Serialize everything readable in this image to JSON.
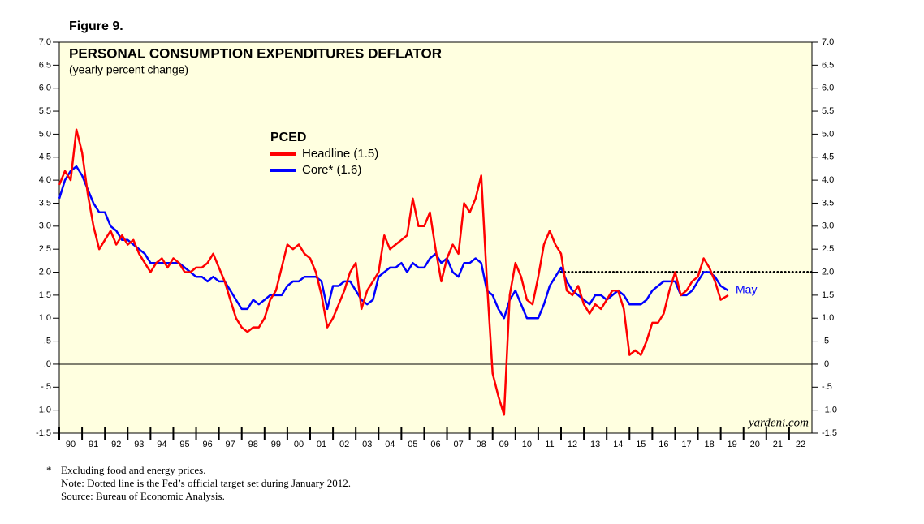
{
  "chart_data": {
    "type": "line",
    "figure_label": "Figure 9.",
    "title": "PERSONAL CONSUMPTION EXPENDITURES DEFLATOR",
    "subtitle": "(yearly percent change)",
    "legend_title": "PCED",
    "annotation": "May",
    "watermark": "yardeni.com",
    "footnote_marker": "*",
    "footnotes": [
      "Excluding food and energy prices.",
      "Note: Dotted line is the Fed’s official target set during January 2012.",
      "Source: Bureau of Economic Analysis."
    ],
    "xlim": [
      1990,
      2023
    ],
    "xticks": [
      {
        "value": 1990,
        "label": "90"
      },
      {
        "value": 1991,
        "label": "91"
      },
      {
        "value": 1992,
        "label": "92"
      },
      {
        "value": 1993,
        "label": "93"
      },
      {
        "value": 1994,
        "label": "94"
      },
      {
        "value": 1995,
        "label": "95"
      },
      {
        "value": 1996,
        "label": "96"
      },
      {
        "value": 1997,
        "label": "97"
      },
      {
        "value": 1998,
        "label": "98"
      },
      {
        "value": 1999,
        "label": "99"
      },
      {
        "value": 2000,
        "label": "00"
      },
      {
        "value": 2001,
        "label": "01"
      },
      {
        "value": 2002,
        "label": "02"
      },
      {
        "value": 2003,
        "label": "03"
      },
      {
        "value": 2004,
        "label": "04"
      },
      {
        "value": 2005,
        "label": "05"
      },
      {
        "value": 2006,
        "label": "06"
      },
      {
        "value": 2007,
        "label": "07"
      },
      {
        "value": 2008,
        "label": "08"
      },
      {
        "value": 2009,
        "label": "09"
      },
      {
        "value": 2010,
        "label": "10"
      },
      {
        "value": 2011,
        "label": "11"
      },
      {
        "value": 2012,
        "label": "12"
      },
      {
        "value": 2013,
        "label": "13"
      },
      {
        "value": 2014,
        "label": "14"
      },
      {
        "value": 2015,
        "label": "15"
      },
      {
        "value": 2016,
        "label": "16"
      },
      {
        "value": 2017,
        "label": "17"
      },
      {
        "value": 2018,
        "label": "18"
      },
      {
        "value": 2019,
        "label": "19"
      },
      {
        "value": 2020,
        "label": "20"
      },
      {
        "value": 2021,
        "label": "21"
      },
      {
        "value": 2022,
        "label": "22"
      }
    ],
    "ylim": [
      -1.5,
      7.0
    ],
    "yticks": [
      {
        "value": -1.5,
        "label": "-1.5"
      },
      {
        "value": -1.0,
        "label": "-1.0"
      },
      {
        "value": -0.5,
        "label": "-.5"
      },
      {
        "value": 0,
        "label": ".0"
      },
      {
        "value": 0.5,
        "label": ".5"
      },
      {
        "value": 1.0,
        "label": "1.0"
      },
      1.5,
      {
        "value": 2.0,
        "label": "2.0"
      },
      2.5,
      {
        "value": 3.0,
        "label": "3.0"
      },
      3.5,
      {
        "value": 4.0,
        "label": "4.0"
      },
      4.5,
      {
        "value": 5.0,
        "label": "5.0"
      },
      5.5,
      {
        "value": 6.0,
        "label": "6.0"
      },
      6.5,
      {
        "value": 7.0,
        "label": "7.0"
      }
    ],
    "reference_line": {
      "y": 2.0,
      "x": [
        2012,
        2023
      ]
    },
    "x": [
      1990,
      1990.25,
      1990.5,
      1990.75,
      1991,
      1991.25,
      1991.5,
      1991.75,
      1992,
      1992.25,
      1992.5,
      1992.75,
      1993,
      1993.25,
      1993.5,
      1993.75,
      1994,
      1994.25,
      1994.5,
      1994.75,
      1995,
      1995.25,
      1995.5,
      1995.75,
      1996,
      1996.25,
      1996.5,
      1996.75,
      1997,
      1997.25,
      1997.5,
      1997.75,
      1998,
      1998.25,
      1998.5,
      1998.75,
      1999,
      1999.25,
      1999.5,
      1999.75,
      2000,
      2000.25,
      2000.5,
      2000.75,
      2001,
      2001.25,
      2001.5,
      2001.75,
      2002,
      2002.25,
      2002.5,
      2002.75,
      2003,
      2003.25,
      2003.5,
      2003.75,
      2004,
      2004.25,
      2004.5,
      2004.75,
      2005,
      2005.25,
      2005.5,
      2005.75,
      2006,
      2006.25,
      2006.5,
      2006.75,
      2007,
      2007.25,
      2007.5,
      2007.75,
      2008,
      2008.25,
      2008.5,
      2008.75,
      2009,
      2009.25,
      2009.5,
      2009.75,
      2010,
      2010.25,
      2010.5,
      2010.75,
      2011,
      2011.25,
      2011.5,
      2011.75,
      2012,
      2012.25,
      2012.5,
      2012.75,
      2013,
      2013.25,
      2013.5,
      2013.75,
      2014,
      2014.25,
      2014.5,
      2014.75,
      2015,
      2015.25,
      2015.5,
      2015.75,
      2016,
      2016.25,
      2016.5,
      2016.75,
      2017,
      2017.25,
      2017.5,
      2017.75,
      2018,
      2018.25,
      2018.5,
      2018.75,
      2019,
      2019.33
    ],
    "series": [
      {
        "name": "Headline (1.5)",
        "color": "#ff0000",
        "values": [
          3.9,
          4.2,
          4.0,
          5.1,
          4.6,
          3.7,
          3.0,
          2.5,
          2.7,
          2.9,
          2.6,
          2.8,
          2.6,
          2.7,
          2.4,
          2.2,
          2.0,
          2.2,
          2.3,
          2.1,
          2.3,
          2.2,
          2.0,
          2.0,
          2.1,
          2.1,
          2.2,
          2.4,
          2.1,
          1.8,
          1.4,
          1.0,
          0.8,
          0.7,
          0.8,
          0.8,
          1.0,
          1.4,
          1.6,
          2.1,
          2.6,
          2.5,
          2.6,
          2.4,
          2.3,
          2.0,
          1.5,
          0.8,
          1.0,
          1.3,
          1.6,
          2.0,
          2.2,
          1.2,
          1.6,
          1.8,
          2.0,
          2.8,
          2.5,
          2.6,
          2.7,
          2.8,
          3.6,
          3.0,
          3.0,
          3.3,
          2.5,
          1.8,
          2.3,
          2.6,
          2.4,
          3.5,
          3.3,
          3.6,
          4.1,
          1.8,
          -0.2,
          -0.7,
          -1.1,
          1.5,
          2.2,
          1.9,
          1.4,
          1.3,
          1.9,
          2.6,
          2.9,
          2.6,
          2.4,
          1.6,
          1.5,
          1.7,
          1.3,
          1.1,
          1.3,
          1.2,
          1.4,
          1.6,
          1.6,
          1.2,
          0.2,
          0.3,
          0.2,
          0.5,
          0.9,
          0.9,
          1.1,
          1.6,
          2.0,
          1.5,
          1.6,
          1.8,
          1.9,
          2.3,
          2.1,
          1.8,
          1.4,
          1.5
        ]
      },
      {
        "name": "Core* (1.6)",
        "color": "#0000ff",
        "values": [
          3.6,
          4.0,
          4.2,
          4.3,
          4.1,
          3.8,
          3.5,
          3.3,
          3.3,
          3.0,
          2.9,
          2.7,
          2.7,
          2.6,
          2.5,
          2.4,
          2.2,
          2.2,
          2.2,
          2.2,
          2.2,
          2.2,
          2.1,
          2.0,
          1.9,
          1.9,
          1.8,
          1.9,
          1.8,
          1.8,
          1.6,
          1.4,
          1.2,
          1.2,
          1.4,
          1.3,
          1.4,
          1.5,
          1.5,
          1.5,
          1.7,
          1.8,
          1.8,
          1.9,
          1.9,
          1.9,
          1.8,
          1.2,
          1.7,
          1.7,
          1.8,
          1.8,
          1.6,
          1.4,
          1.3,
          1.4,
          1.9,
          2.0,
          2.1,
          2.1,
          2.2,
          2.0,
          2.2,
          2.1,
          2.1,
          2.3,
          2.4,
          2.2,
          2.3,
          2.0,
          1.9,
          2.2,
          2.2,
          2.3,
          2.2,
          1.6,
          1.5,
          1.2,
          1.0,
          1.4,
          1.6,
          1.3,
          1.0,
          1.0,
          1.0,
          1.3,
          1.7,
          1.9,
          2.1,
          1.8,
          1.6,
          1.5,
          1.4,
          1.3,
          1.5,
          1.5,
          1.4,
          1.5,
          1.6,
          1.5,
          1.3,
          1.3,
          1.3,
          1.4,
          1.6,
          1.7,
          1.8,
          1.8,
          1.8,
          1.5,
          1.5,
          1.6,
          1.8,
          2.0,
          2.0,
          1.9,
          1.7,
          1.6
        ]
      }
    ]
  }
}
